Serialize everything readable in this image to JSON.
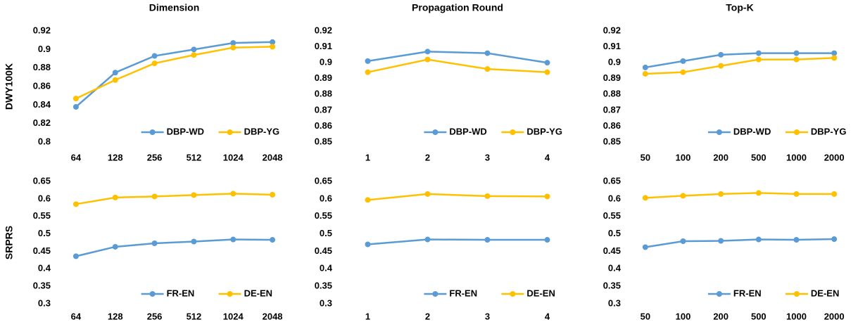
{
  "chart_data": [
    {
      "type": "line",
      "title": "Dimension",
      "ylabel": "DWY100K",
      "categories": [
        "64",
        "128",
        "256",
        "512",
        "1024",
        "2048"
      ],
      "series": [
        {
          "name": "DBP-WD",
          "color": "#5b9bd5",
          "values": [
            0.838,
            0.875,
            0.893,
            0.9,
            0.907,
            0.908
          ]
        },
        {
          "name": "DBP-YG",
          "color": "#ffc000",
          "values": [
            0.847,
            0.867,
            0.885,
            0.894,
            0.902,
            0.903
          ]
        }
      ],
      "ylim": [
        0.8,
        0.92
      ],
      "yticks": [
        0.8,
        0.82,
        0.84,
        0.86,
        0.88,
        0.9,
        0.92
      ],
      "grid": false,
      "legend": "lower center"
    },
    {
      "type": "line",
      "title": "Propagation Round",
      "categories": [
        "1",
        "2",
        "3",
        "4"
      ],
      "series": [
        {
          "name": "DBP-WD",
          "color": "#5b9bd5",
          "values": [
            0.901,
            0.907,
            0.906,
            0.9
          ]
        },
        {
          "name": "DBP-YG",
          "color": "#ffc000",
          "values": [
            0.894,
            0.902,
            0.896,
            0.894
          ]
        }
      ],
      "ylim": [
        0.85,
        0.92
      ],
      "yticks": [
        0.85,
        0.86,
        0.87,
        0.88,
        0.89,
        0.9,
        0.91,
        0.92
      ],
      "grid": false,
      "legend": "lower center"
    },
    {
      "type": "line",
      "title": "Top-K",
      "categories": [
        "50",
        "100",
        "200",
        "500",
        "1000",
        "2000"
      ],
      "series": [
        {
          "name": "DBP-WD",
          "color": "#5b9bd5",
          "values": [
            0.897,
            0.901,
            0.905,
            0.906,
            0.906,
            0.906
          ]
        },
        {
          "name": "DBP-YG",
          "color": "#ffc000",
          "values": [
            0.893,
            0.894,
            0.898,
            0.902,
            0.902,
            0.903
          ]
        }
      ],
      "ylim": [
        0.85,
        0.92
      ],
      "yticks": [
        0.85,
        0.86,
        0.87,
        0.88,
        0.89,
        0.9,
        0.91,
        0.92
      ],
      "grid": false,
      "legend": "lower center"
    },
    {
      "type": "line",
      "ylabel": "SRPRS",
      "categories": [
        "64",
        "128",
        "256",
        "512",
        "1024",
        "2048"
      ],
      "series": [
        {
          "name": "FR-EN",
          "color": "#5b9bd5",
          "values": [
            0.436,
            0.463,
            0.473,
            0.478,
            0.484,
            0.483
          ]
        },
        {
          "name": "DE-EN",
          "color": "#ffc000",
          "values": [
            0.585,
            0.604,
            0.607,
            0.611,
            0.615,
            0.612
          ]
        }
      ],
      "ylim": [
        0.3,
        0.65
      ],
      "yticks": [
        0.3,
        0.35,
        0.4,
        0.45,
        0.5,
        0.55,
        0.6,
        0.65
      ],
      "grid": false,
      "legend": "lower center"
    },
    {
      "type": "line",
      "categories": [
        "1",
        "2",
        "3",
        "4"
      ],
      "series": [
        {
          "name": "FR-EN",
          "color": "#5b9bd5",
          "values": [
            0.47,
            0.484,
            0.483,
            0.483
          ]
        },
        {
          "name": "DE-EN",
          "color": "#ffc000",
          "values": [
            0.597,
            0.614,
            0.608,
            0.607
          ]
        }
      ],
      "ylim": [
        0.3,
        0.65
      ],
      "yticks": [
        0.3,
        0.35,
        0.4,
        0.45,
        0.5,
        0.55,
        0.6,
        0.65
      ],
      "grid": false,
      "legend": "lower center"
    },
    {
      "type": "line",
      "categories": [
        "50",
        "100",
        "200",
        "500",
        "1000",
        "2000"
      ],
      "series": [
        {
          "name": "FR-EN",
          "color": "#5b9bd5",
          "values": [
            0.462,
            0.479,
            0.48,
            0.484,
            0.483,
            0.485
          ]
        },
        {
          "name": "DE-EN",
          "color": "#ffc000",
          "values": [
            0.603,
            0.609,
            0.614,
            0.617,
            0.614,
            0.614
          ]
        }
      ],
      "ylim": [
        0.3,
        0.65
      ],
      "yticks": [
        0.3,
        0.35,
        0.4,
        0.45,
        0.5,
        0.55,
        0.6,
        0.65
      ],
      "grid": false,
      "legend": "lower center"
    }
  ]
}
